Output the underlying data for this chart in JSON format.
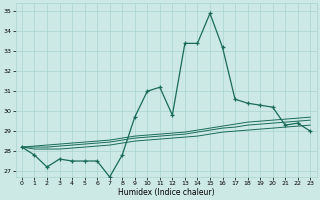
{
  "xlabel": "Humidex (Indice chaleur)",
  "x": [
    0,
    1,
    2,
    3,
    4,
    5,
    6,
    7,
    8,
    9,
    10,
    11,
    12,
    13,
    14,
    15,
    16,
    17,
    18,
    19,
    20,
    21,
    22,
    23
  ],
  "y_main": [
    28.2,
    27.8,
    27.2,
    27.6,
    27.5,
    27.5,
    27.5,
    26.7,
    27.8,
    29.7,
    31.0,
    31.2,
    29.8,
    33.4,
    33.4,
    34.9,
    33.2,
    30.6,
    30.4,
    30.3,
    30.2,
    29.3,
    29.4,
    29.0
  ],
  "y_line1": [
    28.2,
    28.1,
    28.1,
    28.1,
    28.15,
    28.2,
    28.25,
    28.3,
    28.4,
    28.5,
    28.55,
    28.6,
    28.65,
    28.7,
    28.75,
    28.85,
    28.95,
    29.0,
    29.05,
    29.1,
    29.15,
    29.2,
    29.25,
    29.3
  ],
  "y_line2": [
    28.2,
    28.2,
    28.2,
    28.25,
    28.3,
    28.35,
    28.4,
    28.45,
    28.55,
    28.65,
    28.7,
    28.75,
    28.8,
    28.85,
    28.95,
    29.05,
    29.15,
    29.2,
    29.3,
    29.35,
    29.4,
    29.45,
    29.5,
    29.55
  ],
  "y_line3": [
    28.2,
    28.25,
    28.3,
    28.35,
    28.4,
    28.45,
    28.5,
    28.55,
    28.65,
    28.75,
    28.8,
    28.85,
    28.9,
    28.95,
    29.05,
    29.15,
    29.25,
    29.35,
    29.45,
    29.5,
    29.55,
    29.6,
    29.65,
    29.7
  ],
  "bg_color": "#cce9e5",
  "grid_color": "#aad4cf",
  "line_color": "#1a6b5a",
  "ylim": [
    26.7,
    35.4
  ],
  "xlim": [
    -0.5,
    23.5
  ],
  "yticks": [
    27,
    28,
    29,
    30,
    31,
    32,
    33,
    34,
    35
  ],
  "xticks": [
    0,
    1,
    2,
    3,
    4,
    5,
    6,
    7,
    8,
    9,
    10,
    11,
    12,
    13,
    14,
    15,
    16,
    17,
    18,
    19,
    20,
    21,
    22,
    23
  ]
}
